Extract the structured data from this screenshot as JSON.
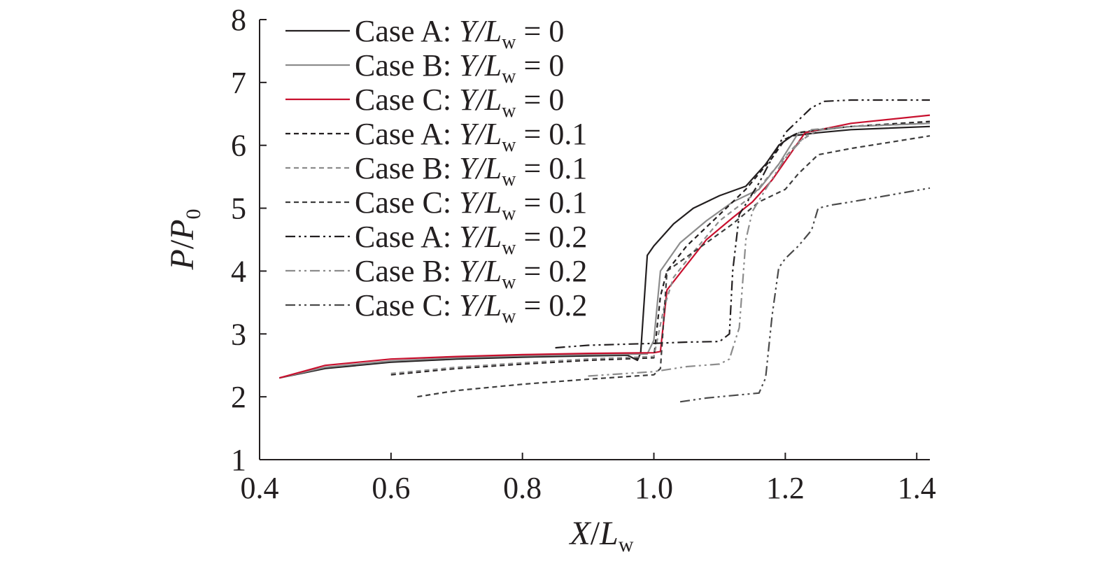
{
  "chart_data": {
    "type": "line",
    "xlabel": {
      "var": "X",
      "sep": "/",
      "sym": "L",
      "sub": "w"
    },
    "ylabel": {
      "var": "P",
      "sep": "/",
      "sym": "P",
      "sub": "0"
    },
    "xlim": [
      0.4,
      1.42
    ],
    "ylim": [
      1,
      8
    ],
    "xticks": [
      0.4,
      0.6,
      0.8,
      1.0,
      1.2,
      1.4
    ],
    "xtick_labels": [
      "0.4",
      "0.6",
      "0.8",
      "1.0",
      "1.2",
      "1.4"
    ],
    "yticks": [
      1,
      2,
      3,
      4,
      5,
      6,
      7,
      8
    ],
    "ytick_labels": [
      "1",
      "2",
      "3",
      "4",
      "5",
      "6",
      "7",
      "8"
    ],
    "grid": false,
    "legend_position": "top-left",
    "series": [
      {
        "name": "Case A: Y/Lw = 0",
        "case": "Case A: ",
        "ratio": "Y/L",
        "sub": "w",
        "eq": " = 0",
        "color": "#231f20",
        "dash": "solid",
        "x": [
          0.43,
          0.5,
          0.6,
          0.7,
          0.8,
          0.9,
          0.96,
          0.975,
          0.98,
          0.99,
          1.0,
          1.03,
          1.06,
          1.1,
          1.14,
          1.17,
          1.19,
          1.21,
          1.25,
          1.3,
          1.42
        ],
        "y": [
          2.3,
          2.45,
          2.55,
          2.6,
          2.63,
          2.65,
          2.66,
          2.58,
          2.7,
          4.25,
          4.4,
          4.75,
          5.0,
          5.2,
          5.35,
          5.7,
          6.0,
          6.15,
          6.2,
          6.25,
          6.3
        ]
      },
      {
        "name": "Case B: Y/Lw = 0",
        "case": "Case B: ",
        "ratio": "Y/L",
        "sub": "w",
        "eq": " = 0",
        "color": "#8c8c8c",
        "dash": "solid",
        "x": [
          0.43,
          0.5,
          0.6,
          0.7,
          0.8,
          0.9,
          0.99,
          1.0,
          1.01,
          1.04,
          1.08,
          1.12,
          1.16,
          1.19,
          1.22,
          1.3,
          1.42
        ],
        "y": [
          2.3,
          2.47,
          2.57,
          2.62,
          2.65,
          2.67,
          2.68,
          2.9,
          4.0,
          4.45,
          4.8,
          5.1,
          5.3,
          5.7,
          6.2,
          6.3,
          6.35
        ]
      },
      {
        "name": "Case C: Y/Lw = 0",
        "case": "Case C: ",
        "ratio": "Y/L",
        "sub": "w",
        "eq": " = 0",
        "color": "#c8102e",
        "dash": "solid",
        "x": [
          0.43,
          0.5,
          0.6,
          0.7,
          0.8,
          0.9,
          1.0,
          1.01,
          1.02,
          1.05,
          1.08,
          1.12,
          1.15,
          1.18,
          1.21,
          1.23,
          1.3,
          1.42
        ],
        "y": [
          2.3,
          2.5,
          2.6,
          2.64,
          2.67,
          2.69,
          2.7,
          2.72,
          3.7,
          4.1,
          4.5,
          4.85,
          5.1,
          5.45,
          5.9,
          6.2,
          6.35,
          6.48
        ]
      },
      {
        "name": "Case A: Y/Lw = 0.1",
        "case": "Case A: ",
        "ratio": "Y/L",
        "sub": "w",
        "eq": " = 0.1",
        "color": "#231f20",
        "dash": "dotted",
        "x": [
          0.6,
          0.7,
          0.8,
          0.9,
          1.0,
          1.01,
          1.02,
          1.05,
          1.1,
          1.14,
          1.18,
          1.2,
          1.22,
          1.25,
          1.3,
          1.42
        ],
        "y": [
          2.35,
          2.45,
          2.52,
          2.58,
          2.62,
          3.6,
          4.0,
          4.4,
          4.9,
          5.3,
          5.8,
          6.1,
          6.2,
          6.25,
          6.3,
          6.38
        ]
      },
      {
        "name": "Case B: Y/Lw = 0.1",
        "case": "Case B: ",
        "ratio": "Y/L",
        "sub": "w",
        "eq": " = 0.1",
        "color": "#8c8c8c",
        "dash": "dotted",
        "x": [
          0.6,
          0.7,
          0.8,
          0.9,
          1.0,
          1.015,
          1.03,
          1.06,
          1.1,
          1.15,
          1.19,
          1.22,
          1.25,
          1.3,
          1.42
        ],
        "y": [
          2.37,
          2.47,
          2.54,
          2.6,
          2.64,
          3.4,
          3.9,
          4.3,
          4.8,
          5.2,
          5.7,
          6.05,
          6.25,
          6.3,
          6.35
        ]
      },
      {
        "name": "Case C: Y/Lw = 0.1",
        "case": "Case C: ",
        "ratio": "Y/L",
        "sub": "w",
        "eq": " = 0.1",
        "color": "#3d3d3d",
        "dash": "dotted",
        "x": [
          0.64,
          0.7,
          0.8,
          0.9,
          1.0,
          1.01,
          1.02,
          1.06,
          1.12,
          1.16,
          1.2,
          1.22,
          1.25,
          1.3,
          1.42
        ],
        "y": [
          2.0,
          2.1,
          2.2,
          2.28,
          2.35,
          2.45,
          4.0,
          4.3,
          4.75,
          5.1,
          5.3,
          5.55,
          5.85,
          5.95,
          6.15
        ]
      },
      {
        "name": "Case A: Y/Lw = 0.2",
        "case": "Case A: ",
        "ratio": "Y/L",
        "sub": "w",
        "eq": " = 0.2",
        "color": "#231f20",
        "dash": "dashdot",
        "x": [
          0.85,
          0.9,
          1.0,
          1.05,
          1.1,
          1.115,
          1.12,
          1.13,
          1.16,
          1.2,
          1.24,
          1.26,
          1.3,
          1.42
        ],
        "y": [
          2.78,
          2.82,
          2.85,
          2.87,
          2.88,
          3.0,
          4.0,
          4.9,
          5.4,
          6.2,
          6.6,
          6.7,
          6.72,
          6.72
        ]
      },
      {
        "name": "Case B: Y/Lw = 0.2",
        "case": "Case B: ",
        "ratio": "Y/L",
        "sub": "w",
        "eq": " = 0.2",
        "color": "#8c8c8c",
        "dash": "dashdot",
        "x": [
          0.9,
          1.0,
          1.05,
          1.1,
          1.115,
          1.13,
          1.14,
          1.15,
          1.17,
          1.2,
          1.24,
          1.3,
          1.42
        ],
        "y": [
          2.33,
          2.4,
          2.48,
          2.52,
          2.6,
          3.1,
          4.5,
          4.95,
          5.3,
          5.8,
          6.25,
          6.3,
          6.35
        ]
      },
      {
        "name": "Case C: Y/Lw = 0.2",
        "case": "Case C: ",
        "ratio": "Y/L",
        "sub": "w",
        "eq": " = 0.2",
        "color": "#4a4a4a",
        "dash": "dashdot",
        "x": [
          1.04,
          1.08,
          1.12,
          1.16,
          1.17,
          1.18,
          1.19,
          1.2,
          1.22,
          1.24,
          1.25,
          1.27,
          1.3,
          1.42
        ],
        "y": [
          1.92,
          1.98,
          2.02,
          2.06,
          2.3,
          3.3,
          4.05,
          4.2,
          4.4,
          4.65,
          5.0,
          5.05,
          5.1,
          5.32
        ]
      }
    ],
    "accent_colors": {
      "blue": "#1f4fc4",
      "green": "#2e9e48",
      "cyan": "#2ab3c0"
    }
  }
}
